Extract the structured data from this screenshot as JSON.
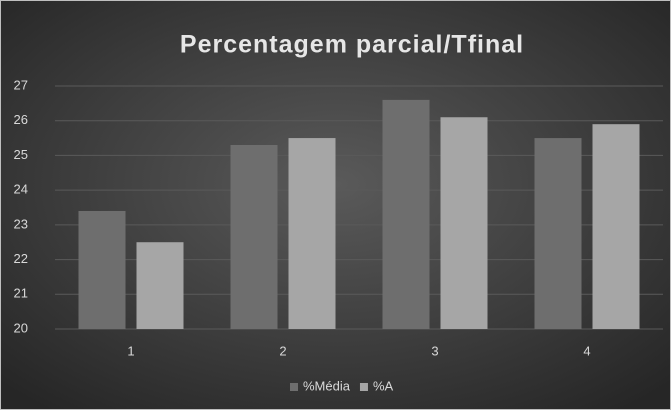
{
  "chart_data": {
    "type": "bar",
    "title": "Percentagem parcial/Tfinal",
    "categories": [
      "1",
      "2",
      "3",
      "4"
    ],
    "series": [
      {
        "name": "%Média",
        "color": "#6e6e6e",
        "values": [
          23.4,
          25.3,
          26.6,
          25.5
        ]
      },
      {
        "name": "%A",
        "color": "#a6a6a6",
        "values": [
          22.5,
          25.5,
          26.1,
          25.9
        ]
      }
    ],
    "ylim": [
      20,
      27
    ],
    "yticks": [
      20,
      21,
      22,
      23,
      24,
      25,
      26,
      27
    ],
    "grid": true,
    "legend": "bottom"
  }
}
